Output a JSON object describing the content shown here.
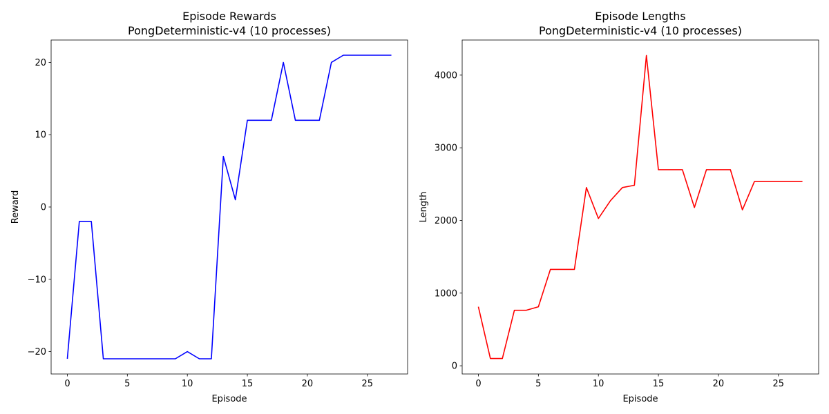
{
  "chart_data": [
    {
      "type": "line",
      "title": "Episode Rewards",
      "subtitle": "PongDeterministic-v4 (10 processes)",
      "xlabel": "Episode",
      "ylabel": "Reward",
      "xlim": [
        -1.35,
        28.35
      ],
      "ylim": [
        -23.1,
        23.1
      ],
      "xticks": [
        0,
        5,
        10,
        15,
        20,
        25
      ],
      "yticks": [
        -20,
        -10,
        0,
        10,
        20
      ],
      "grid": false,
      "series": [
        {
          "color": "#0000ff",
          "x": [
            0,
            1,
            2,
            3,
            4,
            5,
            6,
            7,
            8,
            9,
            10,
            11,
            12,
            13,
            14,
            15,
            16,
            17,
            18,
            19,
            20,
            21,
            22,
            23,
            24,
            25,
            26,
            27
          ],
          "y": [
            -21,
            -2,
            -2,
            -21,
            -21,
            -21,
            -21,
            -21,
            -21,
            -21,
            -20,
            -21,
            -21,
            7,
            1,
            12,
            12,
            12,
            20,
            12,
            12,
            12,
            20,
            21,
            21,
            21,
            21,
            21
          ]
        }
      ]
    },
    {
      "type": "line",
      "title": "Episode Lengths",
      "subtitle": "PongDeterministic-v4 (10 processes)",
      "xlabel": "Episode",
      "ylabel": "Length",
      "xlim": [
        -1.35,
        28.35
      ],
      "ylim": [
        -113,
        4483
      ],
      "xticks": [
        0,
        5,
        10,
        15,
        20,
        25
      ],
      "yticks": [
        0,
        1000,
        2000,
        3000,
        4000
      ],
      "grid": false,
      "series": [
        {
          "color": "#ff0000",
          "x": [
            0,
            1,
            2,
            3,
            4,
            5,
            6,
            7,
            8,
            9,
            10,
            11,
            12,
            13,
            14,
            15,
            16,
            17,
            18,
            19,
            20,
            21,
            22,
            23,
            24,
            25,
            26,
            27
          ],
          "y": [
            812,
            100,
            100,
            764,
            764,
            812,
            1326,
            1326,
            1326,
            2453,
            2027,
            2271,
            2453,
            2484,
            4270,
            2698,
            2698,
            2698,
            2178,
            2698,
            2698,
            2698,
            2146,
            2536,
            2536,
            2536,
            2536,
            2536
          ]
        }
      ]
    }
  ]
}
